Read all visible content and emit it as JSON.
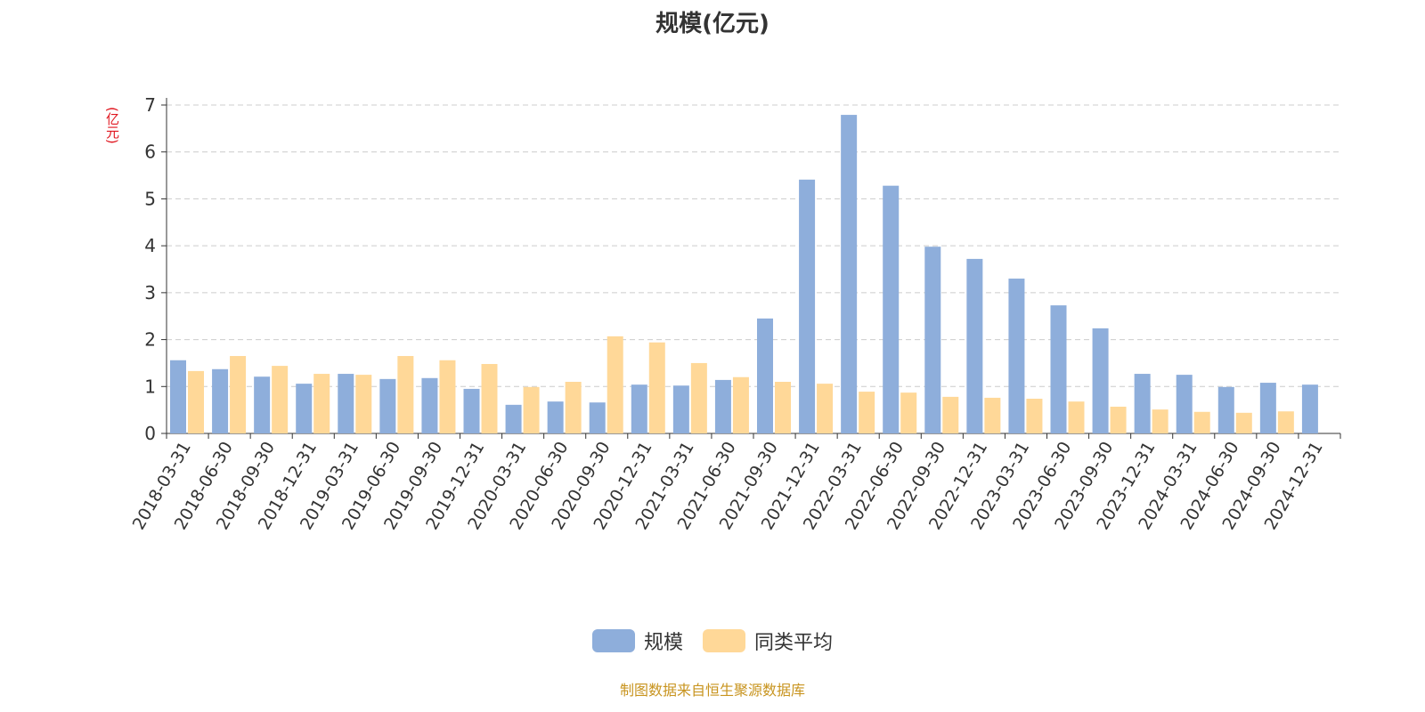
{
  "title": "规模(亿元)",
  "footer": "制图数据来自恒生聚源数据库",
  "colors": {
    "series1": "#8eaedb",
    "series2": "#ffd898",
    "unit": "#e0161f",
    "footer": "#c8941f"
  },
  "chart_data": {
    "type": "bar",
    "title": "规模(亿元)",
    "ylabel": "(亿元)",
    "ylim": [
      0,
      7
    ],
    "yticks": [
      0,
      1,
      2,
      3,
      4,
      5,
      6,
      7
    ],
    "grid": true,
    "legend_position": "bottom",
    "categories": [
      "2018-03-31",
      "2018-06-30",
      "2018-09-30",
      "2018-12-31",
      "2019-03-31",
      "2019-06-30",
      "2019-09-30",
      "2019-12-31",
      "2020-03-31",
      "2020-06-30",
      "2020-09-30",
      "2020-12-31",
      "2021-03-31",
      "2021-06-30",
      "2021-09-30",
      "2021-12-31",
      "2022-03-31",
      "2022-06-30",
      "2022-09-30",
      "2022-12-31",
      "2023-03-31",
      "2023-06-30",
      "2023-09-30",
      "2023-12-31",
      "2024-03-31",
      "2024-06-30",
      "2024-09-30",
      "2024-12-31"
    ],
    "series": [
      {
        "name": "规模",
        "values": [
          1.56,
          1.37,
          1.21,
          1.06,
          1.27,
          1.16,
          1.18,
          0.95,
          0.61,
          0.68,
          0.66,
          1.04,
          1.02,
          1.14,
          2.45,
          5.41,
          6.79,
          5.28,
          3.98,
          3.72,
          3.3,
          2.73,
          2.24,
          1.27,
          1.25,
          0.99,
          1.08,
          1.04
        ]
      },
      {
        "name": "同类平均",
        "values": [
          1.33,
          1.65,
          1.44,
          1.27,
          1.25,
          1.65,
          1.56,
          1.48,
          0.99,
          1.1,
          2.07,
          1.94,
          1.5,
          1.2,
          1.1,
          1.06,
          0.89,
          0.87,
          0.78,
          0.76,
          0.74,
          0.68,
          0.57,
          0.51,
          0.46,
          0.44,
          0.47,
          null
        ]
      }
    ]
  }
}
